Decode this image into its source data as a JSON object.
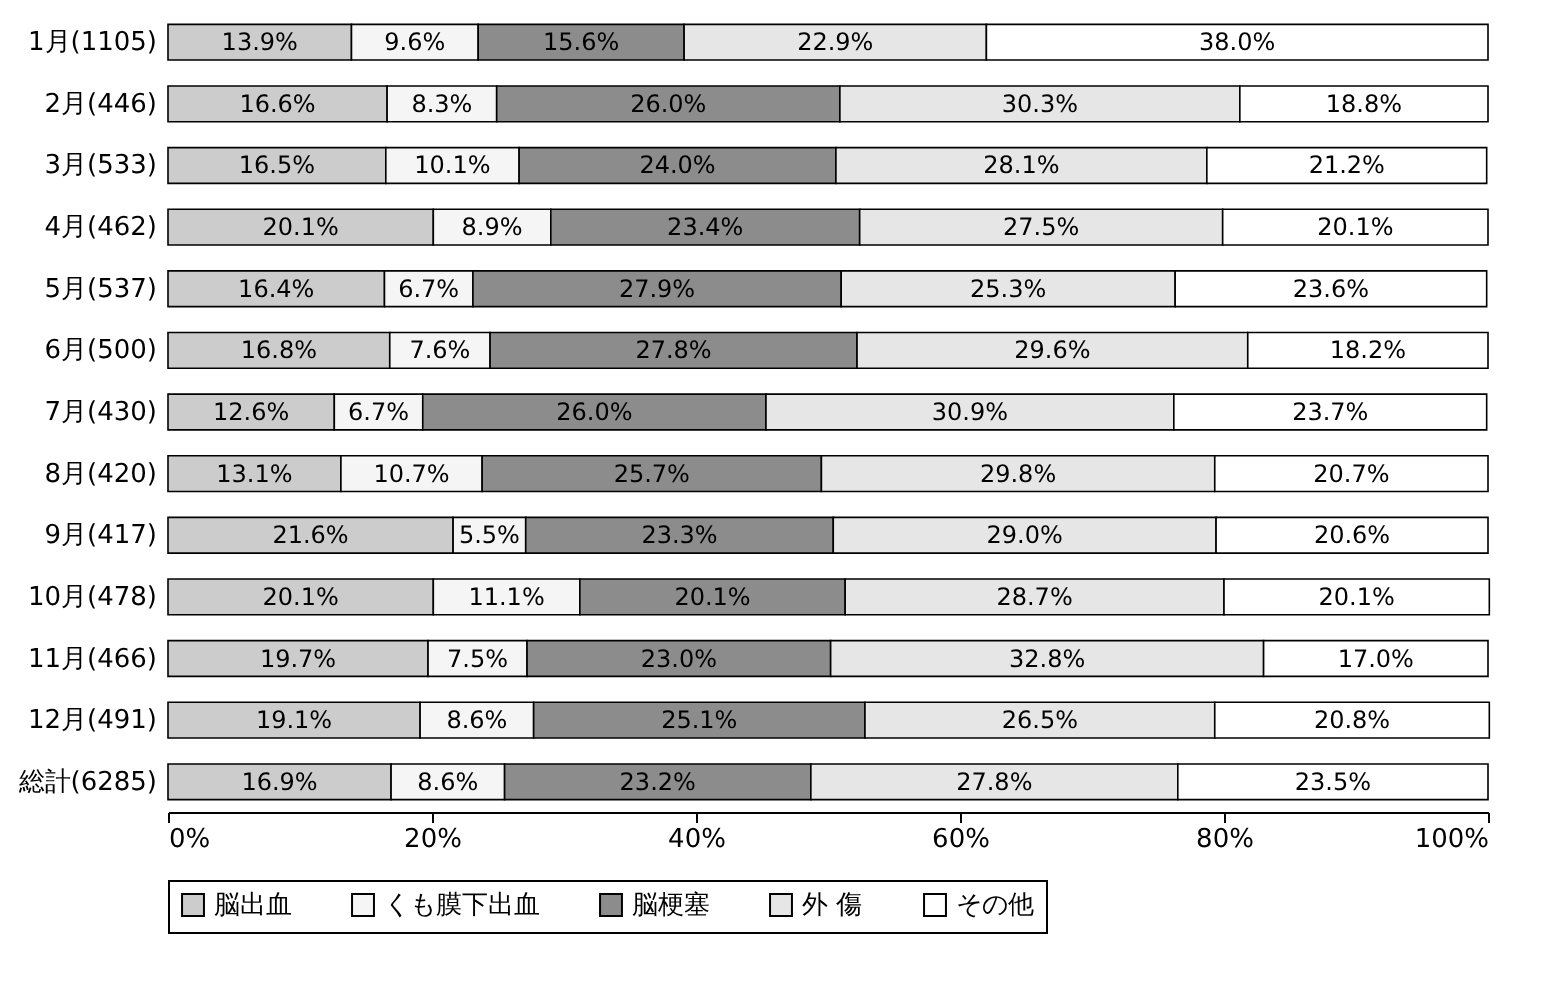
{
  "chart_data": {
    "type": "bar",
    "orientation": "horizontal",
    "stacked": true,
    "categories": [
      "1月(1105)",
      "2月(446)",
      "3月(533)",
      "4月(462)",
      "5月(537)",
      "6月(500)",
      "7月(430)",
      "8月(420)",
      "9月(417)",
      "10月(478)",
      "11月(466)",
      "12月(491)",
      "総計(6285)"
    ],
    "series": [
      {
        "name": "脳出血",
        "color": "#cccccc",
        "values": [
          13.9,
          16.6,
          16.5,
          20.1,
          16.4,
          16.8,
          12.6,
          13.1,
          21.6,
          20.1,
          19.7,
          19.1,
          16.9
        ],
        "value_labels": [
          "13.9%",
          "16.6%",
          "16.5%",
          "20.1%",
          "16.4%",
          "16.8%",
          "12.6%",
          "13.1%",
          "21.6%",
          "20.1%",
          "19.7%",
          "19.1%",
          "16.9%"
        ]
      },
      {
        "name": "くも膜下出血",
        "color": "#f5f5f5",
        "values": [
          9.6,
          8.3,
          10.1,
          8.9,
          6.7,
          7.6,
          6.7,
          10.7,
          5.5,
          11.1,
          7.5,
          8.6,
          8.6
        ],
        "value_labels": [
          "9.6%",
          "8.3%",
          "10.1%",
          "8.9%",
          "6.7%",
          "7.6%",
          "6.7%",
          "10.7%",
          "5.5%",
          "11.1%",
          "7.5%",
          "8.6%",
          "8.6%"
        ]
      },
      {
        "name": "脳梗塞",
        "color": "#8c8c8c",
        "values": [
          15.6,
          26.0,
          24.0,
          23.4,
          27.9,
          27.8,
          26.0,
          25.7,
          23.3,
          20.1,
          23.0,
          25.1,
          23.2
        ],
        "value_labels": [
          "15.6%",
          "26.0%",
          "24.0%",
          "23.4%",
          "27.9%",
          "27.8%",
          "26.0%",
          "25.7%",
          "23.3%",
          "20.1%",
          "23.0%",
          "25.1%",
          "23.2%"
        ]
      },
      {
        "name": "外 傷",
        "color": "#e6e6e6",
        "values": [
          22.9,
          30.3,
          28.1,
          27.5,
          25.3,
          29.6,
          30.9,
          29.8,
          29.0,
          28.7,
          32.8,
          26.5,
          27.8
        ],
        "value_labels": [
          "22.9%",
          "30.3%",
          "28.1%",
          "27.5%",
          "25.3%",
          "29.6%",
          "30.9%",
          "29.8%",
          "29.0%",
          "28.7%",
          "32.8%",
          "26.5%",
          "27.8%"
        ]
      },
      {
        "name": "その他",
        "color": "#ffffff",
        "values": [
          38.0,
          18.8,
          21.2,
          20.1,
          23.6,
          18.2,
          23.7,
          20.7,
          20.6,
          20.1,
          17.0,
          20.8,
          23.5
        ],
        "value_labels": [
          "38.0%",
          "18.8%",
          "21.2%",
          "20.1%",
          "23.6%",
          "18.2%",
          "23.7%",
          "20.7%",
          "20.6%",
          "20.1%",
          "17.0%",
          "20.8%",
          "23.5%"
        ]
      }
    ],
    "xlim": [
      0,
      100
    ],
    "xticks": [
      {
        "value": 0,
        "label": "0%"
      },
      {
        "value": 20,
        "label": "20%"
      },
      {
        "value": 40,
        "label": "40%"
      },
      {
        "value": 60,
        "label": "60%"
      },
      {
        "value": 80,
        "label": "80%"
      },
      {
        "value": 100,
        "label": "100%"
      }
    ],
    "legend": "bottom"
  }
}
